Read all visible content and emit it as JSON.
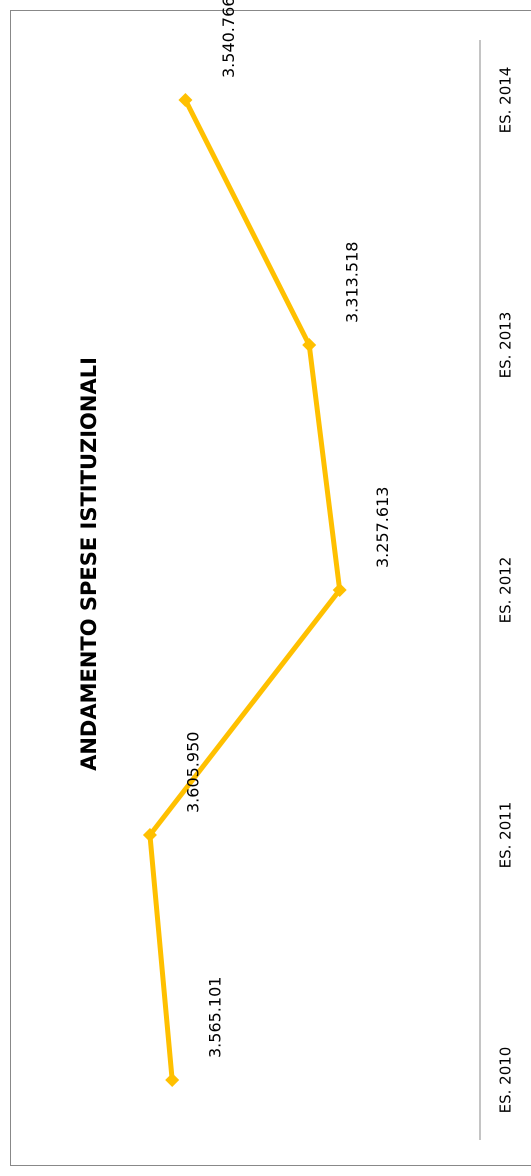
{
  "chart_data": {
    "type": "line",
    "title": "ANDAMENTO SPESE ISTITUZIONALI",
    "categories": [
      "ES. 2010",
      "ES. 2011",
      "ES. 2012",
      "ES. 2013",
      "ES. 2014"
    ],
    "values": [
      3565101,
      3605950,
      3257613,
      3313518,
      3540766
    ],
    "value_labels": [
      "3.565.101",
      "3.605.950",
      "3.257.613",
      "3.313.518",
      "3.540.766"
    ],
    "color": "#FFC000",
    "ylim": [
      3000000,
      3700000
    ],
    "grid": false
  }
}
